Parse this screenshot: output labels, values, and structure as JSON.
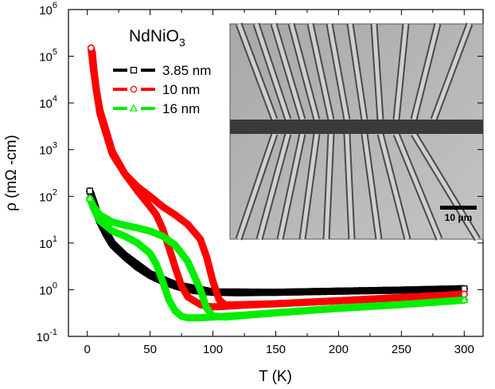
{
  "chart_data": {
    "type": "line",
    "title": "NdNiO",
    "title_subscript": "3",
    "xlabel": "T (K)",
    "ylabel": "ρ (mΩ -cm)",
    "xlim": [
      -15,
      315
    ],
    "ylim": [
      0.1,
      1000000
    ],
    "yscale": "log",
    "x_ticks": [
      0,
      50,
      100,
      150,
      200,
      250,
      300
    ],
    "y_ticks": [
      {
        "value": 0.1,
        "base": "10",
        "exp": "-1"
      },
      {
        "value": 1,
        "base": "10",
        "exp": "0"
      },
      {
        "value": 10,
        "base": "10",
        "exp": "1"
      },
      {
        "value": 100,
        "base": "10",
        "exp": "2"
      },
      {
        "value": 1000,
        "base": "10",
        "exp": "3"
      },
      {
        "value": 10000,
        "base": "10",
        "exp": "4"
      },
      {
        "value": 100000,
        "base": "10",
        "exp": "5"
      },
      {
        "value": 1000000,
        "base": "10",
        "exp": "6"
      }
    ],
    "legend_position": "top-left",
    "series": [
      {
        "name": "3.85 nm",
        "color": "#000000",
        "marker": "square",
        "cooling": [
          [
            300,
            1.05
          ],
          [
            250,
            0.98
          ],
          [
            200,
            0.93
          ],
          [
            150,
            0.88
          ],
          [
            120,
            0.86
          ],
          [
            100,
            0.88
          ],
          [
            90,
            0.92
          ],
          [
            80,
            1.0
          ],
          [
            70,
            1.2
          ],
          [
            60,
            1.5
          ],
          [
            50,
            2.0
          ],
          [
            40,
            3.0
          ],
          [
            30,
            5.0
          ],
          [
            20,
            9.0
          ],
          [
            15,
            15
          ],
          [
            10,
            28
          ],
          [
            7,
            45
          ],
          [
            5,
            75
          ],
          [
            3,
            115
          ],
          [
            2,
            130
          ]
        ],
        "warming": [
          [
            2,
            130
          ],
          [
            5,
            80
          ],
          [
            10,
            30
          ],
          [
            20,
            10
          ],
          [
            30,
            5.5
          ],
          [
            50,
            2.2
          ],
          [
            70,
            1.3
          ],
          [
            100,
            0.9
          ],
          [
            150,
            0.88
          ],
          [
            200,
            0.93
          ],
          [
            250,
            0.98
          ],
          [
            300,
            1.05
          ]
        ]
      },
      {
        "name": "10 nm",
        "color": "#ff0000",
        "marker": "circle",
        "cooling": [
          [
            300,
            0.8
          ],
          [
            250,
            0.68
          ],
          [
            200,
            0.58
          ],
          [
            150,
            0.5
          ],
          [
            120,
            0.46
          ],
          [
            110,
            0.44
          ],
          [
            100,
            0.43
          ],
          [
            95,
            0.44
          ],
          [
            90,
            0.48
          ],
          [
            80,
            0.7
          ],
          [
            75,
            1.2
          ],
          [
            70,
            3
          ],
          [
            65,
            8
          ],
          [
            60,
            20
          ],
          [
            55,
            40
          ],
          [
            50,
            60
          ],
          [
            40,
            130
          ],
          [
            30,
            300
          ],
          [
            20,
            900
          ],
          [
            15,
            2500
          ],
          [
            10,
            7000
          ],
          [
            7,
            20000
          ],
          [
            5,
            60000
          ],
          [
            4,
            120000
          ],
          [
            3,
            150000
          ]
        ],
        "warming": [
          [
            3,
            150000
          ],
          [
            5,
            50000
          ],
          [
            10,
            6000
          ],
          [
            20,
            800
          ],
          [
            30,
            300
          ],
          [
            40,
            160
          ],
          [
            50,
            100
          ],
          [
            60,
            60
          ],
          [
            70,
            40
          ],
          [
            80,
            25
          ],
          [
            90,
            12
          ],
          [
            95,
            5
          ],
          [
            100,
            1.5
          ],
          [
            105,
            0.6
          ],
          [
            110,
            0.47
          ],
          [
            150,
            0.5
          ],
          [
            200,
            0.58
          ],
          [
            250,
            0.68
          ],
          [
            300,
            0.8
          ]
        ]
      },
      {
        "name": "16 nm",
        "color": "#00ee00",
        "marker": "triangle",
        "cooling": [
          [
            300,
            0.6
          ],
          [
            250,
            0.48
          ],
          [
            200,
            0.4
          ],
          [
            150,
            0.32
          ],
          [
            120,
            0.28
          ],
          [
            100,
            0.26
          ],
          [
            90,
            0.25
          ],
          [
            80,
            0.25
          ],
          [
            75,
            0.27
          ],
          [
            70,
            0.35
          ],
          [
            65,
            0.6
          ],
          [
            60,
            1.5
          ],
          [
            55,
            3.5
          ],
          [
            50,
            6
          ],
          [
            40,
            10
          ],
          [
            30,
            14
          ],
          [
            20,
            18
          ],
          [
            10,
            30
          ],
          [
            5,
            55
          ],
          [
            2,
            90
          ]
        ],
        "warming": [
          [
            2,
            90
          ],
          [
            5,
            60
          ],
          [
            10,
            40
          ],
          [
            20,
            28
          ],
          [
            30,
            24
          ],
          [
            40,
            21
          ],
          [
            50,
            18
          ],
          [
            60,
            14
          ],
          [
            70,
            9
          ],
          [
            80,
            4
          ],
          [
            90,
            1
          ],
          [
            95,
            0.4
          ],
          [
            100,
            0.27
          ],
          [
            110,
            0.26
          ],
          [
            150,
            0.32
          ],
          [
            200,
            0.4
          ],
          [
            250,
            0.48
          ],
          [
            300,
            0.6
          ]
        ]
      }
    ],
    "inset": {
      "type": "micrograph",
      "scale_bar_label": "10 μm"
    }
  }
}
